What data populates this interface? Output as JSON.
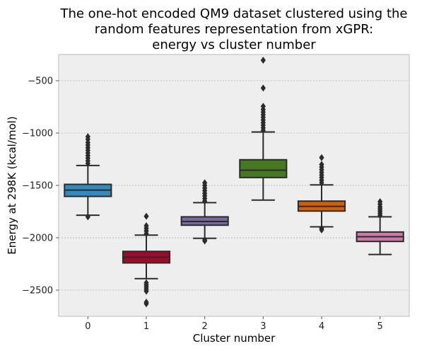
{
  "chart_data": {
    "type": "box",
    "title_lines": [
      "The one-hot encoded QM9 dataset clustered using the",
      "random features representation from xGPR:",
      "energy vs cluster number"
    ],
    "xlabel": "Cluster number",
    "ylabel": "Energy at 298K (kcal/mol)",
    "ylim": [
      -2750,
      -250
    ],
    "yticks": [
      -2500,
      -2000,
      -1500,
      -1000,
      -500
    ],
    "ytick_labels": [
      "−2500",
      "−2000",
      "−1500",
      "−1000",
      "−500"
    ],
    "categories": [
      "0",
      "1",
      "2",
      "3",
      "4",
      "5"
    ],
    "grid": true,
    "background": "#eeeeee",
    "boxes": [
      {
        "category": "0",
        "color": "#348abd",
        "q1": -1605,
        "median": -1545,
        "q3": -1490,
        "whisker_low": -1785,
        "whisker_high": -1310,
        "outliers": [
          -1800,
          -1290,
          -1265,
          -1240,
          -1215,
          -1190,
          -1165,
          -1140,
          -1115,
          -1090,
          -1060,
          -1035
        ]
      },
      {
        "category": "1",
        "color": "#a60628",
        "q1": -2240,
        "median": -2185,
        "q3": -2130,
        "whisker_low": -2390,
        "whisker_high": -1975,
        "outliers": [
          -2630,
          -2615,
          -2510,
          -2490,
          -2470,
          -2450,
          -2430,
          -1960,
          -1935,
          -1910,
          -1885,
          -1795
        ]
      },
      {
        "category": "2",
        "color": "#7a68a6",
        "q1": -1880,
        "median": -1845,
        "q3": -1800,
        "whisker_low": -2005,
        "whisker_high": -1665,
        "outliers": [
          -2030,
          -2020,
          -1650,
          -1625,
          -1600,
          -1575,
          -1550,
          -1525,
          -1500,
          -1475
        ]
      },
      {
        "category": "3",
        "color": "#467821",
        "q1": -1425,
        "median": -1355,
        "q3": -1255,
        "whisker_low": -1640,
        "whisker_high": -990,
        "outliers": [
          -975,
          -950,
          -925,
          -900,
          -875,
          -850,
          -825,
          -800,
          -775,
          -745,
          -570,
          -305
        ]
      },
      {
        "category": "4",
        "color": "#d55e00",
        "q1": -1745,
        "median": -1700,
        "q3": -1650,
        "whisker_low": -1895,
        "whisker_high": -1495,
        "outliers": [
          -1925,
          -1910,
          -1475,
          -1450,
          -1425,
          -1400,
          -1375,
          -1350,
          -1325,
          -1300,
          -1235
        ]
      },
      {
        "category": "5",
        "color": "#cc79a7",
        "q1": -2035,
        "median": -1990,
        "q3": -1945,
        "whisker_low": -2160,
        "whisker_high": -1800,
        "outliers": [
          -1785,
          -1765,
          -1745,
          -1725,
          -1705,
          -1680,
          -1655
        ]
      }
    ]
  }
}
